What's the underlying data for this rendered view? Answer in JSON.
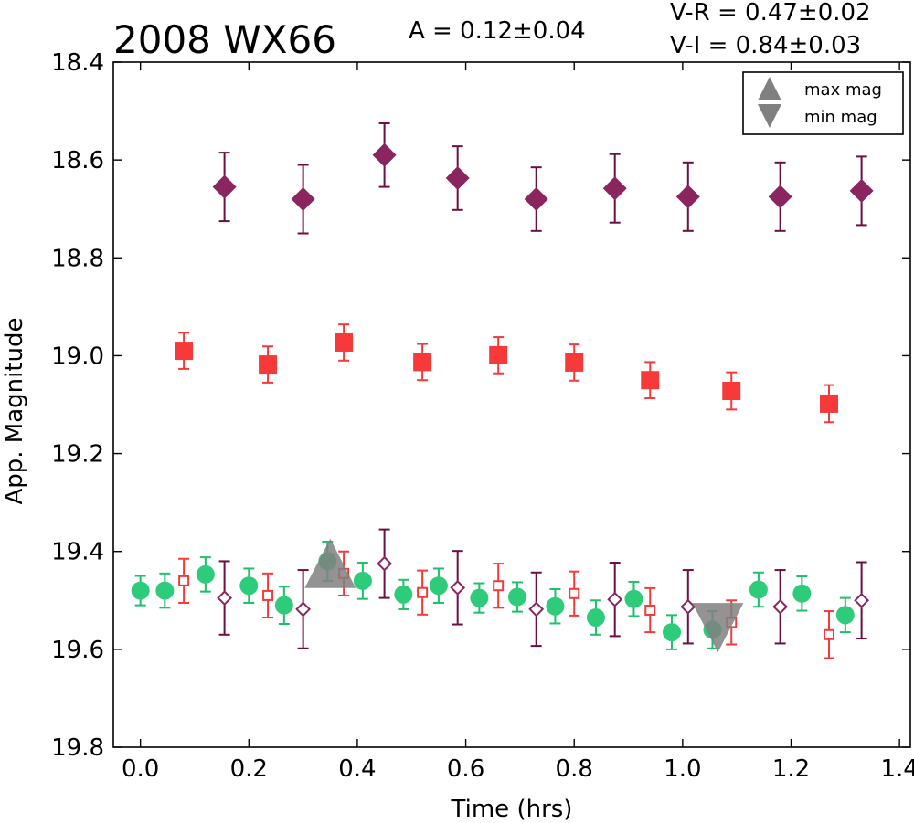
{
  "chart_data": {
    "type": "scatter",
    "title": "2008 WX66",
    "annotations": {
      "amplitude": "A  = 0.12±0.04",
      "vr": "V-R = 0.47±0.02",
      "vi": "V-I  = 0.84±0.03"
    },
    "xlabel": "Time (hrs)",
    "ylabel": "App. Magnitude",
    "xlim": [
      -0.05,
      1.42
    ],
    "ylim": [
      18.4,
      19.8
    ],
    "y_inverted": true,
    "grid": false,
    "xticks": [
      "0.0",
      "0.2",
      "0.4",
      "0.6",
      "0.8",
      "1.0",
      "1.2",
      "1.4"
    ],
    "yticks": [
      "18.4",
      "18.6",
      "18.8",
      "19.0",
      "19.2",
      "19.4",
      "19.6",
      "19.8"
    ],
    "legend": {
      "placement": "top-right",
      "entries": [
        {
          "label": "max mag",
          "marker": "triangle-up",
          "color": "#808080"
        },
        {
          "label": "min mag",
          "marker": "triangle-down",
          "color": "#808080"
        }
      ]
    },
    "series": [
      {
        "marker": "diamond-filled",
        "color": "#8b2560",
        "error_color": "#6b1040",
        "x": [
          0.155,
          0.3,
          0.45,
          0.585,
          0.73,
          0.875,
          1.01,
          1.18,
          1.33
        ],
        "y": [
          18.655,
          18.68,
          18.59,
          18.637,
          18.68,
          18.658,
          18.675,
          18.675,
          18.663
        ],
        "err": [
          0.07,
          0.07,
          0.065,
          0.065,
          0.065,
          0.07,
          0.07,
          0.07,
          0.07
        ]
      },
      {
        "marker": "square-filled",
        "color": "#f63a3a",
        "error_color": "#f63a3a",
        "x": [
          0.08,
          0.235,
          0.375,
          0.52,
          0.66,
          0.8,
          0.94,
          1.09,
          1.27
        ],
        "y": [
          18.99,
          19.018,
          18.973,
          19.013,
          18.999,
          19.014,
          19.05,
          19.072,
          19.098
        ],
        "err": [
          0.037,
          0.037,
          0.037,
          0.037,
          0.037,
          0.037,
          0.037,
          0.038,
          0.038
        ]
      },
      {
        "marker": "circle-filled",
        "color": "#2ecc7a",
        "error_color": "#1ec06a",
        "x": [
          0.0,
          0.045,
          0.12,
          0.2,
          0.265,
          0.345,
          0.41,
          0.485,
          0.55,
          0.625,
          0.695,
          0.765,
          0.84,
          0.91,
          0.98,
          1.055,
          1.14,
          1.22,
          1.3
        ],
        "y": [
          19.48,
          19.48,
          19.447,
          19.47,
          19.51,
          19.42,
          19.46,
          19.488,
          19.47,
          19.495,
          19.493,
          19.512,
          19.535,
          19.497,
          19.565,
          19.56,
          19.478,
          19.486,
          19.53
        ],
        "err": [
          0.03,
          0.035,
          0.035,
          0.035,
          0.038,
          0.04,
          0.037,
          0.03,
          0.035,
          0.03,
          0.03,
          0.035,
          0.035,
          0.035,
          0.035,
          0.038,
          0.035,
          0.035,
          0.035
        ]
      },
      {
        "marker": "square-open",
        "color": "#f63a3a",
        "error_color": "#f63a3a",
        "x": [
          0.08,
          0.235,
          0.375,
          0.52,
          0.66,
          0.8,
          0.94,
          1.09,
          1.27
        ],
        "y": [
          19.46,
          19.49,
          19.445,
          19.484,
          19.47,
          19.486,
          19.52,
          19.545,
          19.57
        ],
        "err": [
          0.045,
          0.045,
          0.045,
          0.045,
          0.045,
          0.045,
          0.045,
          0.045,
          0.048
        ]
      },
      {
        "marker": "diamond-open",
        "color": "#8b2560",
        "error_color": "#6b1040",
        "x": [
          0.155,
          0.3,
          0.45,
          0.585,
          0.73,
          0.875,
          1.01,
          1.18,
          1.33
        ],
        "y": [
          19.495,
          19.518,
          19.425,
          19.474,
          19.518,
          19.498,
          19.513,
          19.513,
          19.5
        ],
        "err": [
          0.075,
          0.08,
          0.07,
          0.075,
          0.075,
          0.075,
          0.075,
          0.075,
          0.078
        ]
      }
    ],
    "extrema": [
      {
        "label": "max mag",
        "marker": "triangle-up",
        "color": "#808080",
        "x": 0.35,
        "y": 19.43
      },
      {
        "label": "min mag",
        "marker": "triangle-down",
        "color": "#808080",
        "x": 1.065,
        "y": 19.55
      }
    ]
  }
}
